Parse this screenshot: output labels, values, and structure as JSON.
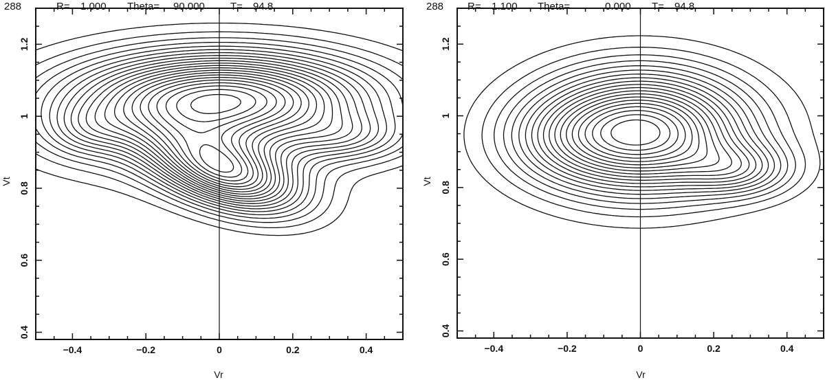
{
  "chart_data": [
    {
      "type": "contour",
      "header": {
        "id": "288",
        "r_label": "R=",
        "r_value": "1.000",
        "theta_label": "Theta=",
        "theta_value": "90.000",
        "t_label": "T=",
        "t_value": "94.8"
      },
      "xlabel": "Vr",
      "ylabel": "Vt",
      "xlim": [
        -0.5,
        0.5
      ],
      "ylim": [
        0.38,
        1.3
      ],
      "xticks": [
        -0.4,
        -0.2,
        0,
        0.2,
        0.4
      ],
      "xtick_labels": [
        "−0.4",
        "−0.2",
        "0",
        "0.2",
        "0.4"
      ],
      "yticks": [
        0.4,
        0.6,
        0.8,
        1.0,
        1.2
      ],
      "ytick_labels": [
        "0.4",
        "0.6",
        "0.8",
        "1",
        "1.2"
      ],
      "reference_line_x": 0,
      "components": [
        {
          "cx": 0.015,
          "cy": 1.05,
          "sx": 0.26,
          "sy": 0.085,
          "amp": 1.0,
          "rho": 0
        },
        {
          "cx": -0.07,
          "cy": 0.99,
          "sx": 0.3,
          "sy": 0.11,
          "amp": 0.3,
          "rho": 0
        },
        {
          "cx": 0.02,
          "cy": 0.845,
          "sx": 0.135,
          "sy": 0.075,
          "amp": 0.95,
          "rho": -0.45
        },
        {
          "cx": 0.35,
          "cy": 0.94,
          "sx": 0.11,
          "sy": 0.045,
          "amp": 0.25,
          "rho": 0
        },
        {
          "cx": -0.36,
          "cy": 0.96,
          "sx": 0.08,
          "sy": 0.05,
          "amp": 0.18,
          "rho": 0
        }
      ],
      "contour_levels": 22,
      "contour_min": 0.05,
      "contour_max": 0.97
    },
    {
      "type": "contour",
      "header": {
        "id": "288",
        "r_label": "R=",
        "r_value": "1.100",
        "theta_label": "Theta=",
        "theta_value": "0.000",
        "t_label": "T=",
        "t_value": "94.8"
      },
      "xlabel": "Vr",
      "ylabel": "Vt",
      "xlim": [
        -0.5,
        0.5
      ],
      "ylim": [
        0.38,
        1.3
      ],
      "xticks": [
        -0.4,
        -0.2,
        0,
        0.2,
        0.4
      ],
      "xtick_labels": [
        "−0.4",
        "−0.2",
        "0",
        "0.2",
        "0.4"
      ],
      "yticks": [
        0.4,
        0.6,
        0.8,
        1.0,
        1.2
      ],
      "ytick_labels": [
        "0.4",
        "0.6",
        "0.8",
        "1",
        "1.2"
      ],
      "reference_line_x": 0,
      "components": [
        {
          "cx": 0.0,
          "cy": 0.955,
          "sx": 0.19,
          "sy": 0.11,
          "amp": 1.0,
          "rho": 0
        },
        {
          "cx": 0.27,
          "cy": 0.85,
          "sx": 0.1,
          "sy": 0.05,
          "amp": 0.3,
          "rho": 0
        },
        {
          "cx": -0.22,
          "cy": 0.93,
          "sx": 0.12,
          "sy": 0.08,
          "amp": 0.12,
          "rho": 0
        }
      ],
      "contour_levels": 20,
      "contour_min": 0.05,
      "contour_max": 0.95
    }
  ]
}
